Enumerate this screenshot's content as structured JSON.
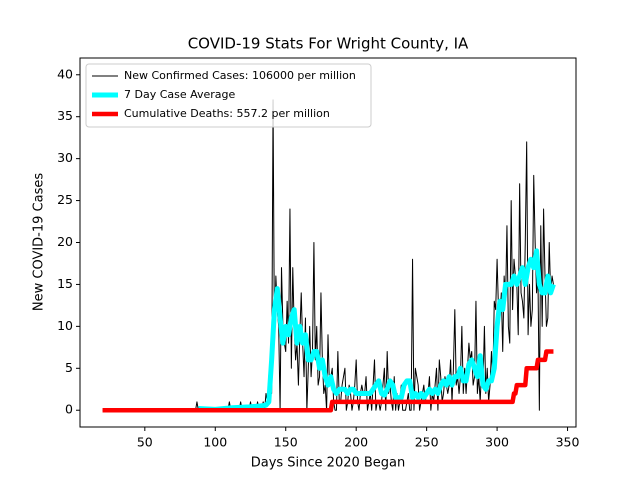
{
  "chart_data": {
    "type": "line",
    "title": "COVID-19 Stats For Wright County, IA",
    "xlabel": "Days Since 2020 Began",
    "ylabel": "New COVID-19 Cases",
    "xlim": [
      4,
      356
    ],
    "ylim": [
      -2,
      42
    ],
    "xticks": [
      50,
      100,
      150,
      200,
      250,
      300,
      350
    ],
    "yticks": [
      0,
      5,
      10,
      15,
      20,
      25,
      30,
      35,
      40
    ],
    "legend": "upper left",
    "series": [
      {
        "name": "New Confirmed Cases: 106000 per million",
        "color": "#000000",
        "width": 1,
        "x": [
          20,
          86,
          87,
          88,
          109,
          110,
          111,
          117,
          118,
          119,
          124,
          125,
          126,
          129,
          130,
          131,
          132,
          133,
          134,
          135,
          136,
          137,
          138,
          139,
          140,
          141,
          142,
          143,
          144,
          145,
          146,
          147,
          148,
          149,
          150,
          151,
          152,
          153,
          154,
          155,
          156,
          157,
          158,
          159,
          160,
          161,
          162,
          163,
          164,
          165,
          166,
          167,
          168,
          169,
          170,
          171,
          172,
          173,
          174,
          175,
          176,
          177,
          178,
          179,
          180,
          181,
          182,
          183,
          184,
          185,
          186,
          187,
          188,
          189,
          190,
          191,
          192,
          193,
          194,
          195,
          196,
          197,
          198,
          199,
          200,
          201,
          202,
          203,
          204,
          205,
          206,
          207,
          208,
          209,
          210,
          211,
          212,
          213,
          214,
          215,
          216,
          217,
          218,
          219,
          220,
          221,
          222,
          223,
          224,
          225,
          226,
          227,
          228,
          229,
          230,
          231,
          232,
          233,
          234,
          235,
          236,
          237,
          238,
          239,
          240,
          241,
          242,
          243,
          244,
          245,
          246,
          247,
          248,
          249,
          250,
          251,
          252,
          253,
          254,
          255,
          256,
          257,
          258,
          259,
          260,
          261,
          262,
          263,
          264,
          265,
          266,
          267,
          268,
          269,
          270,
          271,
          272,
          273,
          274,
          275,
          276,
          277,
          278,
          279,
          280,
          281,
          282,
          283,
          284,
          285,
          286,
          287,
          288,
          289,
          290,
          291,
          292,
          293,
          294,
          295,
          296,
          297,
          298,
          299,
          300,
          301,
          302,
          303,
          304,
          305,
          306,
          307,
          308,
          309,
          310,
          311,
          312,
          313,
          314,
          315,
          316,
          317,
          318,
          319,
          320,
          321,
          322,
          323,
          324,
          325,
          326,
          327,
          328,
          329,
          330,
          331,
          332,
          333,
          334,
          335,
          336,
          337,
          338,
          339,
          340
        ],
        "values": [
          0,
          0,
          1,
          0,
          0,
          1,
          0,
          0,
          1,
          0,
          0,
          1,
          0,
          0,
          1,
          0,
          0,
          0,
          1,
          0,
          2,
          1,
          4,
          6,
          2,
          37,
          8,
          16,
          12,
          10,
          0,
          17,
          10,
          8,
          7,
          13,
          8,
          24,
          5,
          17,
          10,
          6,
          8,
          3,
          9,
          14,
          8,
          4,
          11,
          0,
          5,
          10,
          4,
          7,
          20,
          6,
          10,
          3,
          4,
          14,
          6,
          2,
          3,
          0,
          9,
          3,
          4,
          5,
          1,
          0,
          0,
          7,
          1,
          1,
          3,
          4,
          5,
          0,
          1,
          3,
          2,
          0,
          1,
          3,
          6,
          1,
          0,
          2,
          3,
          2,
          2,
          4,
          0,
          1,
          2,
          0,
          3,
          6,
          0,
          1,
          1,
          0,
          1,
          3,
          5,
          0,
          7,
          2,
          3,
          1,
          0,
          4,
          0,
          2,
          0,
          1,
          3,
          0,
          0,
          0,
          1,
          2,
          0,
          0,
          18,
          0,
          5,
          4,
          3,
          0,
          1,
          2,
          3,
          1,
          2,
          2,
          4,
          0,
          2,
          1,
          3,
          5,
          0,
          6,
          4,
          1,
          2,
          4,
          3,
          2,
          3,
          6,
          1,
          5,
          12,
          3,
          4,
          2,
          4,
          10,
          2,
          5,
          2,
          5,
          8,
          6,
          7,
          3,
          4,
          13,
          2,
          4,
          1,
          5,
          3,
          10,
          2,
          5,
          1,
          3,
          7,
          4,
          13,
          12,
          18,
          12,
          11,
          14,
          7,
          16,
          13,
          22,
          10,
          8,
          25,
          12,
          18,
          16,
          15,
          9,
          27,
          14,
          13,
          11,
          20,
          32,
          9,
          15,
          10,
          12,
          28,
          20,
          14,
          16,
          0,
          22,
          10,
          24,
          16,
          10,
          11,
          20,
          14,
          16,
          15
        ]
      },
      {
        "name": "7 Day Case Average",
        "color": "#00ffff",
        "width": 5,
        "x": [
          88,
          100,
          112,
          124,
          132,
          136,
          138,
          140,
          142,
          144,
          146,
          148,
          150,
          152,
          154,
          156,
          158,
          160,
          162,
          164,
          166,
          168,
          170,
          172,
          174,
          176,
          178,
          180,
          182,
          184,
          186,
          188,
          190,
          192,
          194,
          196,
          198,
          200,
          202,
          204,
          206,
          208,
          210,
          212,
          214,
          216,
          218,
          220,
          222,
          224,
          226,
          228,
          230,
          232,
          234,
          236,
          238,
          240,
          242,
          244,
          246,
          248,
          250,
          252,
          254,
          256,
          258,
          260,
          262,
          264,
          266,
          268,
          270,
          272,
          274,
          276,
          278,
          280,
          282,
          284,
          286,
          288,
          290,
          292,
          294,
          296,
          298,
          300,
          302,
          304,
          306,
          308,
          310,
          312,
          314,
          316,
          318,
          320,
          322,
          324,
          326,
          328,
          330,
          332,
          334,
          336,
          338,
          340
        ],
        "values": [
          0.2,
          0.1,
          0.3,
          0.4,
          0.5,
          0.6,
          1,
          6,
          12,
          14.5,
          11,
          8,
          10,
          9,
          11,
          12,
          8,
          10,
          8,
          9,
          6,
          6,
          7,
          7,
          5,
          6,
          4,
          3,
          4,
          2.5,
          2,
          2.5,
          2.5,
          2.5,
          2,
          2.5,
          2.5,
          2,
          2,
          2,
          2,
          2,
          2,
          2.5,
          3,
          3.5,
          2,
          1.8,
          2.5,
          3.5,
          3,
          1.5,
          1.5,
          1.5,
          3,
          3.5,
          3.5,
          1.5,
          2,
          1.5,
          2,
          1.5,
          2,
          2.5,
          2,
          2.5,
          2,
          3,
          3.5,
          3,
          4,
          3,
          4,
          4,
          5,
          3.5,
          3.5,
          5.5,
          6,
          5,
          4,
          6.5,
          3,
          2.5,
          3.5,
          3.5,
          5,
          10,
          13,
          12,
          15,
          15,
          15,
          16,
          15,
          16,
          17,
          15,
          17,
          18,
          17,
          19,
          15,
          14,
          14,
          16,
          14,
          15
        ]
      },
      {
        "name": "Cumulative Deaths: 557.2 per million",
        "color": "#ff0000",
        "width": 4.5,
        "x": [
          20,
          182,
          183,
          311,
          312,
          313,
          314,
          320,
          321,
          328,
          329,
          334,
          335,
          340
        ],
        "values": [
          0,
          0,
          1,
          1,
          2,
          2,
          3,
          3,
          5,
          5,
          6,
          6,
          7,
          7
        ]
      }
    ]
  }
}
